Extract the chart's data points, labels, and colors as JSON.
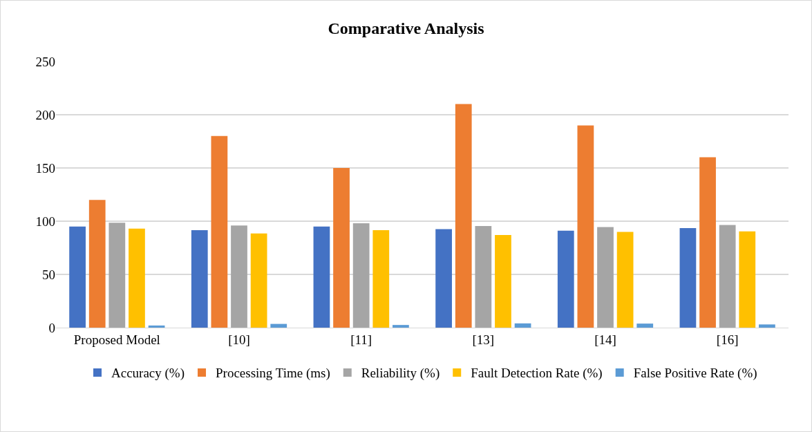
{
  "chart_data": {
    "type": "bar",
    "title": "Comparative Analysis",
    "categories": [
      "Proposed Model",
      "[10]",
      "[11]",
      "[13]",
      "[14]",
      "[16]"
    ],
    "series": [
      {
        "name": "Accuracy (%)",
        "color": "#4472c4",
        "values": [
          95,
          91.5,
          95,
          92.5,
          91,
          93.5
        ]
      },
      {
        "name": "Processing Time (ms)",
        "color": "#ed7d31",
        "values": [
          120,
          180,
          150,
          210,
          190,
          160
        ]
      },
      {
        "name": "Reliability (%)",
        "color": "#a5a5a5",
        "values": [
          98.5,
          96,
          98,
          95.5,
          94.5,
          96.5
        ]
      },
      {
        "name": "Fault Detection Rate (%)",
        "color": "#ffc000",
        "values": [
          93,
          88.5,
          91.5,
          87,
          90,
          90.5
        ]
      },
      {
        "name": "False Positive Rate (%)",
        "color": "#5b9bd5",
        "values": [
          2,
          3.5,
          2.5,
          4,
          3.8,
          3
        ]
      }
    ],
    "ylim": [
      0,
      250
    ],
    "yticks": [
      0,
      50,
      100,
      150,
      200,
      250
    ],
    "grid": "y",
    "legend": "bottom"
  }
}
